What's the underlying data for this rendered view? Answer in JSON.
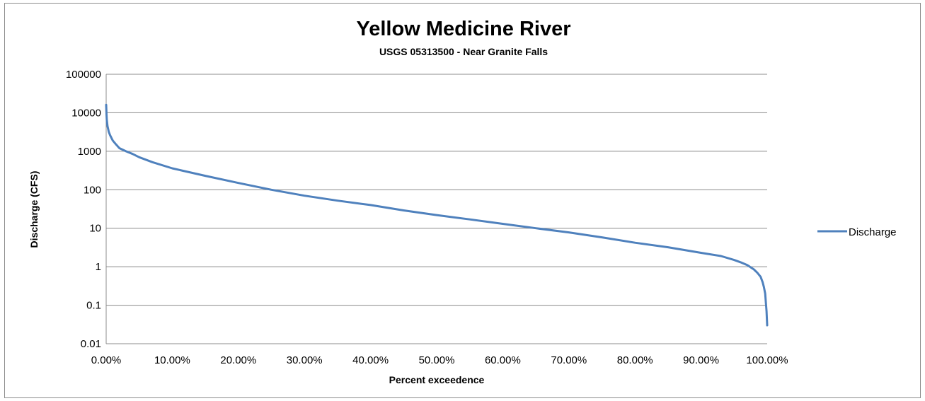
{
  "chart_data": {
    "type": "line",
    "title": "Yellow Medicine River",
    "subtitle": "USGS 05313500 - Near Granite Falls",
    "xlabel": "Percent exceedence",
    "ylabel": "Discharge (CFS)",
    "y_scale": "log",
    "ylim": [
      0.01,
      100000
    ],
    "xlim": [
      0,
      100
    ],
    "y_ticks": [
      "0.01",
      "0.1",
      "1",
      "10",
      "100",
      "1000",
      "10000",
      "100000"
    ],
    "x_ticks": [
      "0.00%",
      "10.00%",
      "20.00%",
      "30.00%",
      "40.00%",
      "50.00%",
      "60.00%",
      "70.00%",
      "80.00%",
      "90.00%",
      "100.00%"
    ],
    "grid": "horizontal",
    "legend_position": "right",
    "series": [
      {
        "name": "Discharge",
        "color": "#4f81bd",
        "x": [
          0,
          0.05,
          0.1,
          0.2,
          0.4,
          0.6,
          1,
          1.5,
          2,
          3,
          4,
          5,
          7,
          10,
          15,
          20,
          25,
          30,
          35,
          40,
          45,
          50,
          55,
          60,
          65,
          70,
          75,
          80,
          85,
          90,
          93,
          95,
          96,
          97,
          98,
          98.5,
          99,
          99.3,
          99.5,
          99.7,
          99.8,
          99.9,
          100
        ],
        "y": [
          16000,
          9000,
          6500,
          4500,
          3200,
          2600,
          1900,
          1500,
          1200,
          1000,
          850,
          700,
          520,
          360,
          230,
          150,
          100,
          70,
          52,
          40,
          29,
          22,
          17,
          13,
          10,
          7.8,
          5.8,
          4.2,
          3.2,
          2.3,
          1.9,
          1.5,
          1.3,
          1.1,
          0.85,
          0.7,
          0.55,
          0.4,
          0.3,
          0.2,
          0.12,
          0.07,
          0.03
        ]
      }
    ]
  }
}
